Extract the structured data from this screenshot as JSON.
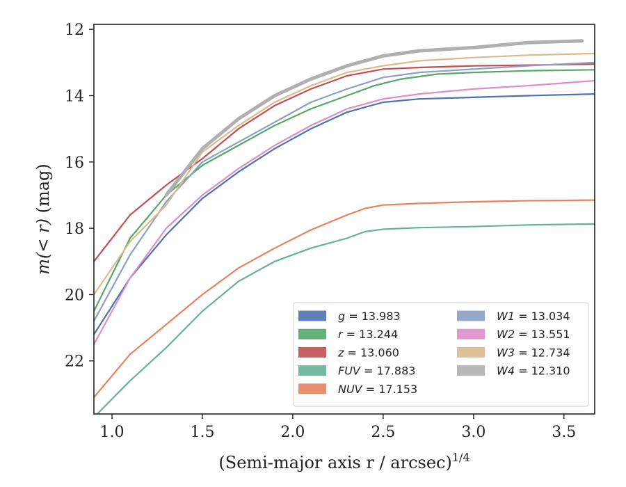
{
  "chart_data": {
    "type": "line",
    "xlabel": "(Semi-major axis r / arcsec)",
    "xlabel_exp": "1/4",
    "ylabel_prefix": "m(< r)",
    "ylabel_suffix": " (mag)",
    "xlim": [
      0.9,
      3.67
    ],
    "ylim": [
      23.6,
      11.85
    ],
    "y_inverted": true,
    "xticks": [
      1.0,
      1.5,
      2.0,
      2.5,
      3.0,
      3.5
    ],
    "xtick_labels": [
      "1.0",
      "1.5",
      "2.0",
      "2.5",
      "3.0",
      "3.5"
    ],
    "yticks": [
      12,
      14,
      16,
      18,
      20,
      22
    ],
    "ytick_labels": [
      "12",
      "14",
      "16",
      "18",
      "20",
      "22"
    ],
    "grid": false,
    "legend_position": "lower-right",
    "series": [
      {
        "name": "g",
        "value": "13.983",
        "color": "#4c72b0",
        "x": [
          0.9,
          1.1,
          1.3,
          1.5,
          1.7,
          1.9,
          2.1,
          2.3,
          2.4,
          2.5,
          2.7,
          3.0,
          3.3,
          3.67
        ],
        "y": [
          21.2,
          19.5,
          18.2,
          17.1,
          16.3,
          15.6,
          15.0,
          14.5,
          14.35,
          14.2,
          14.1,
          14.05,
          14.0,
          13.95
        ]
      },
      {
        "name": "r",
        "value": "13.244",
        "color": "#55a868",
        "x": [
          0.9,
          1.1,
          1.3,
          1.5,
          1.7,
          1.9,
          2.1,
          2.3,
          2.45,
          2.6,
          2.8,
          3.0,
          3.3,
          3.67
        ],
        "y": [
          20.5,
          18.3,
          17.0,
          16.1,
          15.5,
          14.9,
          14.4,
          14.0,
          13.7,
          13.5,
          13.35,
          13.3,
          13.25,
          13.22
        ]
      },
      {
        "name": "z",
        "value": "13.060",
        "color": "#c44e52",
        "x": [
          0.9,
          1.1,
          1.3,
          1.5,
          1.7,
          1.9,
          2.1,
          2.3,
          2.5,
          2.7,
          3.0,
          3.3,
          3.67
        ],
        "y": [
          19.0,
          17.6,
          16.7,
          15.9,
          15.0,
          14.3,
          13.8,
          13.4,
          13.2,
          13.15,
          13.1,
          13.08,
          13.05
        ]
      },
      {
        "name": "FUV",
        "value": "17.883",
        "color": "#64b299",
        "x": [
          0.9,
          1.1,
          1.3,
          1.5,
          1.7,
          1.9,
          2.1,
          2.3,
          2.4,
          2.5,
          2.7,
          3.0,
          3.3,
          3.67
        ],
        "y": [
          23.7,
          22.6,
          21.6,
          20.5,
          19.6,
          19.0,
          18.6,
          18.3,
          18.1,
          18.03,
          17.98,
          17.95,
          17.9,
          17.87
        ]
      },
      {
        "name": "NUV",
        "value": "17.153",
        "color": "#e8825e",
        "x": [
          0.9,
          1.1,
          1.3,
          1.5,
          1.7,
          1.9,
          2.1,
          2.3,
          2.4,
          2.5,
          2.7,
          3.0,
          3.3,
          3.67
        ],
        "y": [
          23.1,
          21.8,
          20.9,
          20.0,
          19.2,
          18.6,
          18.05,
          17.6,
          17.4,
          17.3,
          17.25,
          17.2,
          17.17,
          17.15
        ]
      },
      {
        "name": "W1",
        "value": "13.034",
        "color": "#8c9fc7",
        "x": [
          0.9,
          1.1,
          1.3,
          1.5,
          1.7,
          1.9,
          2.1,
          2.3,
          2.5,
          2.7,
          3.0,
          3.3,
          3.67
        ],
        "y": [
          20.8,
          18.8,
          17.2,
          16.0,
          15.4,
          14.8,
          14.2,
          13.8,
          13.45,
          13.3,
          13.2,
          13.1,
          13.0
        ]
      },
      {
        "name": "W2",
        "value": "13.551",
        "color": "#dd8ec9",
        "x": [
          0.9,
          1.1,
          1.3,
          1.5,
          1.7,
          1.9,
          2.1,
          2.3,
          2.5,
          2.7,
          3.0,
          3.3,
          3.67
        ],
        "y": [
          21.5,
          19.5,
          18.0,
          17.0,
          16.2,
          15.5,
          14.9,
          14.4,
          14.1,
          13.95,
          13.8,
          13.7,
          13.55
        ]
      },
      {
        "name": "W3",
        "value": "12.734",
        "color": "#dcba8e",
        "x": [
          0.9,
          1.1,
          1.3,
          1.5,
          1.7,
          1.9,
          2.1,
          2.3,
          2.5,
          2.7,
          3.0,
          3.3,
          3.67
        ],
        "y": [
          20.0,
          18.4,
          17.3,
          15.7,
          14.9,
          14.2,
          13.7,
          13.3,
          13.1,
          12.95,
          12.85,
          12.78,
          12.73
        ]
      },
      {
        "name": "W4",
        "value": "12.310",
        "color": "#b0b0b0",
        "x": [
          1.3,
          1.5,
          1.7,
          1.9,
          2.1,
          2.3,
          2.5,
          2.7,
          3.0,
          3.3,
          3.6
        ],
        "y": [
          17.0,
          15.6,
          14.7,
          14.0,
          13.5,
          13.1,
          12.8,
          12.65,
          12.55,
          12.4,
          12.35
        ]
      }
    ]
  }
}
